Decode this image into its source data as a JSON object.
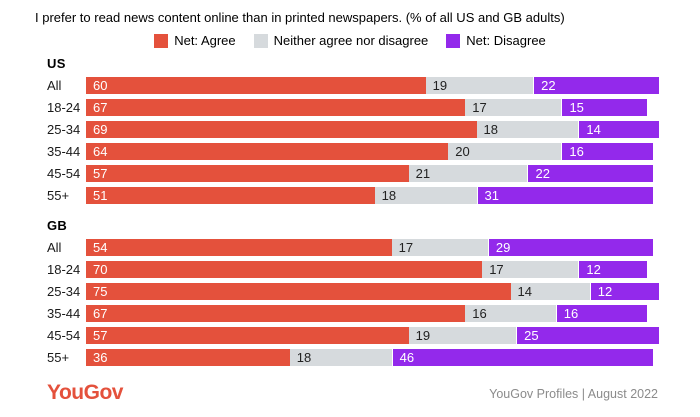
{
  "title": "I prefer to read news content online than in printed newspapers. (% of all US and GB adults)",
  "legend": [
    {
      "name": "agree",
      "label": "Net: Agree",
      "color": "#E4513C"
    },
    {
      "name": "neither",
      "label": "Neither agree nor disagree",
      "color": "#D6DADD"
    },
    {
      "name": "disagree",
      "label": "Net: Disagree",
      "color": "#9329EB"
    }
  ],
  "footer": {
    "logo": "YouGov",
    "logo_color": "#E4513C",
    "source": "YouGov Profiles | August 2022"
  },
  "chart_data": {
    "type": "bar",
    "orientation": "horizontal",
    "stacked": true,
    "unit": "percent",
    "value_range": [
      0,
      100
    ],
    "grid": false,
    "legend_position": "top-center",
    "series_names": [
      "Net: Agree",
      "Neither agree nor disagree",
      "Net: Disagree"
    ],
    "colors": {
      "agree": "#E4513C",
      "neither": "#D6DADD",
      "disagree": "#9329EB"
    },
    "sections": [
      {
        "label": "US",
        "rows": [
          {
            "category": "All",
            "agree": 60,
            "neither": 19,
            "disagree": 22
          },
          {
            "category": "18-24",
            "agree": 67,
            "neither": 17,
            "disagree": 15
          },
          {
            "category": "25-34",
            "agree": 69,
            "neither": 18,
            "disagree": 14
          },
          {
            "category": "35-44",
            "agree": 64,
            "neither": 20,
            "disagree": 16
          },
          {
            "category": "45-54",
            "agree": 57,
            "neither": 21,
            "disagree": 22
          },
          {
            "category": "55+",
            "agree": 51,
            "neither": 18,
            "disagree": 31
          }
        ]
      },
      {
        "label": "GB",
        "rows": [
          {
            "category": "All",
            "agree": 54,
            "neither": 17,
            "disagree": 29
          },
          {
            "category": "18-24",
            "agree": 70,
            "neither": 17,
            "disagree": 12
          },
          {
            "category": "25-34",
            "agree": 75,
            "neither": 14,
            "disagree": 12
          },
          {
            "category": "35-44",
            "agree": 67,
            "neither": 16,
            "disagree": 16
          },
          {
            "category": "45-54",
            "agree": 57,
            "neither": 19,
            "disagree": 25
          },
          {
            "category": "55+",
            "agree": 36,
            "neither": 18,
            "disagree": 46
          }
        ]
      }
    ]
  }
}
